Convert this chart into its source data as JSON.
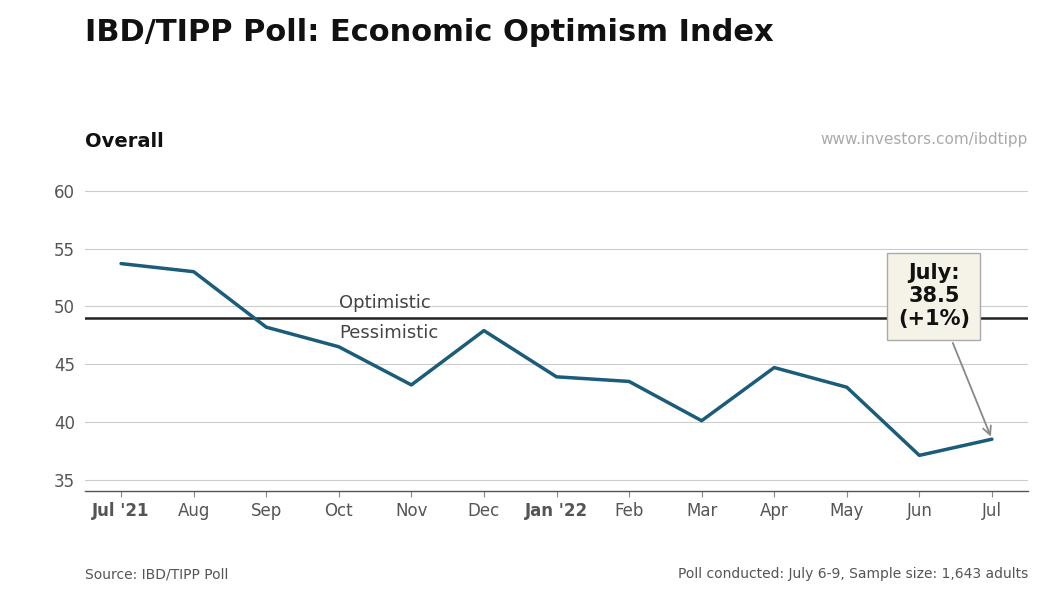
{
  "title": "IBD/TIPP Poll: Economic Optimism Index",
  "subtitle_left": "Overall",
  "subtitle_right": "www.investors.com/ibdtipp",
  "source_left": "Source: IBD/TIPP Poll",
  "source_right": "Poll conducted: July 6-9, Sample size: 1,643 adults",
  "x_labels": [
    "Jul ’21",
    "Aug",
    "Sep",
    "Oct",
    "Nov",
    "Dec",
    "Jan ’22",
    "Feb",
    "Mar",
    "Apr",
    "May",
    "Jun",
    "Jul"
  ],
  "y_values": [
    53.7,
    53.0,
    48.2,
    46.5,
    43.2,
    47.9,
    43.9,
    43.5,
    40.1,
    44.7,
    43.0,
    37.1,
    38.5
  ],
  "ylim": [
    34,
    62
  ],
  "yticks": [
    35,
    40,
    45,
    50,
    55,
    60
  ],
  "optimism_line": 49.0,
  "optimistic_label": "Optimistic",
  "pessimistic_label": "Pessimistic",
  "annotation_text": "July:\n38.5\n(+1%)",
  "line_color": "#1a5c7a",
  "optimism_line_color": "#222222",
  "background_color": "#ffffff",
  "title_fontsize": 22,
  "subtitle_fontsize": 14,
  "tick_fontsize": 12,
  "annotation_fontsize": 15,
  "source_fontsize": 10,
  "website_fontsize": 11
}
